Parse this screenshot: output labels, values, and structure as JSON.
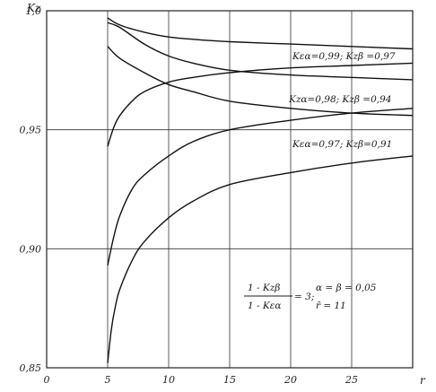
{
  "chart_data": {
    "type": "line",
    "ylabel": "Kz",
    "xlabel": "r",
    "xlim": [
      0,
      30
    ],
    "ylim": [
      0.85,
      1.0
    ],
    "x_ticks": [
      "0",
      "5",
      "10",
      "15",
      "20",
      "25"
    ],
    "y_ticks": [
      "1,0",
      "0,95",
      "0,90",
      "0,85"
    ],
    "grid": true,
    "annotations": {
      "label_1": "Kεα=0,99; Kzβ =0,97",
      "label_2": "Kzα=0,98; Kzβ =0,94",
      "label_3": "Kεα=0,97; Kzβ=0,91",
      "formula_numerator": "1 - Kzβ",
      "formula_denominator": "1 - Kεα",
      "formula_value": "= 3;",
      "params_1": "α = β = 0,05",
      "params_2": "r̄ = 11"
    },
    "series": [
      {
        "x": [
          5,
          6,
          8,
          10,
          12,
          15,
          20,
          25,
          30
        ],
        "y": [
          0.997,
          0.994,
          0.991,
          0.989,
          0.988,
          0.987,
          0.986,
          0.985,
          0.984
        ]
      },
      {
        "x": [
          5,
          6,
          8,
          10,
          12,
          15,
          20,
          25,
          30
        ],
        "y": [
          0.995,
          0.993,
          0.986,
          0.981,
          0.978,
          0.975,
          0.973,
          0.972,
          0.971
        ]
      },
      {
        "x": [
          5,
          6,
          8,
          10,
          12,
          15,
          20,
          25,
          30
        ],
        "y": [
          0.985,
          0.98,
          0.974,
          0.969,
          0.966,
          0.962,
          0.959,
          0.957,
          0.956
        ]
      },
      {
        "x": [
          5,
          5.5,
          6,
          7,
          8,
          10,
          12,
          15,
          20,
          25,
          30
        ],
        "y": [
          0.943,
          0.951,
          0.956,
          0.962,
          0.966,
          0.97,
          0.972,
          0.974,
          0.976,
          0.977,
          0.978
        ]
      },
      {
        "x": [
          5,
          5.5,
          6,
          7,
          8,
          10,
          12,
          15,
          20,
          25,
          30
        ],
        "y": [
          0.893,
          0.905,
          0.914,
          0.925,
          0.931,
          0.939,
          0.945,
          0.95,
          0.954,
          0.957,
          0.959
        ]
      },
      {
        "x": [
          5,
          5.3,
          5.6,
          6,
          7,
          8,
          10,
          12,
          15,
          20,
          25,
          30
        ],
        "y": [
          0.852,
          0.866,
          0.875,
          0.883,
          0.895,
          0.903,
          0.913,
          0.92,
          0.927,
          0.932,
          0.936,
          0.939
        ]
      }
    ]
  }
}
